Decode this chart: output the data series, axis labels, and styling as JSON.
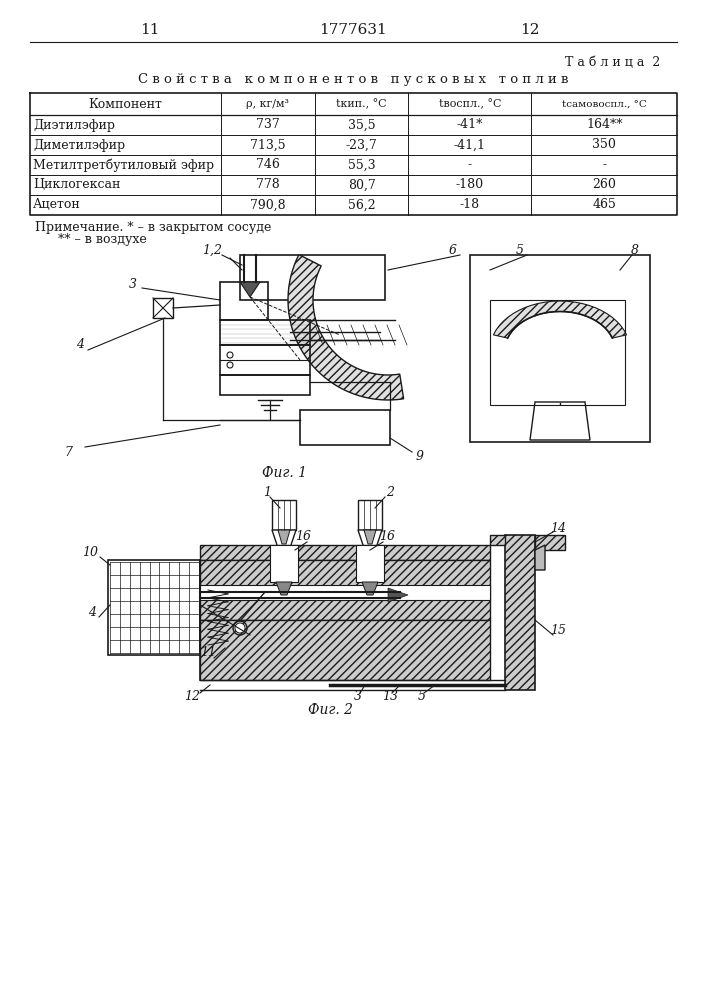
{
  "page_numbers": [
    "11",
    "1777631",
    "12"
  ],
  "table_label": "Таблица 2",
  "table_title": "Свойства компонентов пусковых топлив",
  "table_headers": [
    "Компонент",
    "ρ, кг/м³",
    "tкип., °C",
    "tвоспл., °C",
    "tсамовоспл., °C"
  ],
  "table_rows": [
    [
      "Диэтилэфир",
      "737",
      "35,5",
      "-41*",
      "164**"
    ],
    [
      "Диметилэфир",
      "713,5",
      "-23,7",
      "-41,1",
      "350"
    ],
    [
      "Метилтретбутиловый эфир",
      "746",
      "55,3",
      "-",
      "-"
    ],
    [
      "Циклогексан",
      "778",
      "80,7",
      "-180",
      "260"
    ],
    [
      "Ацетон",
      "790,8",
      "56,2",
      "-18",
      "465"
    ]
  ],
  "note_line1": "Примечание. * – в закрытом сосуде",
  "note_line2": "** – в воздухе",
  "fig1_label": "Фиг. 1",
  "fig2_label": "Фиг. 2",
  "line_color": "#1a1a1a"
}
